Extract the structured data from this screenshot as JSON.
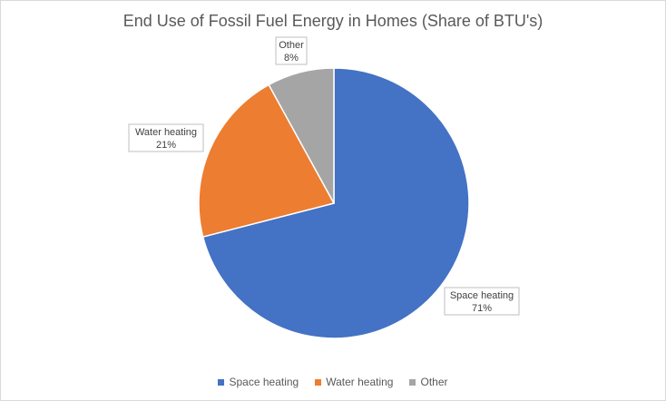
{
  "chart_data": {
    "type": "pie",
    "title": "End Use of Fossil Fuel Energy in Homes (Share of BTU's)",
    "categories": [
      "Space heating",
      "Water heating",
      "Other"
    ],
    "values": [
      71,
      21,
      8
    ],
    "value_labels": [
      "71%",
      "21%",
      "8%"
    ],
    "colors": [
      "#4472c4",
      "#ed7d31",
      "#a5a5a5"
    ],
    "legend_position": "bottom"
  }
}
